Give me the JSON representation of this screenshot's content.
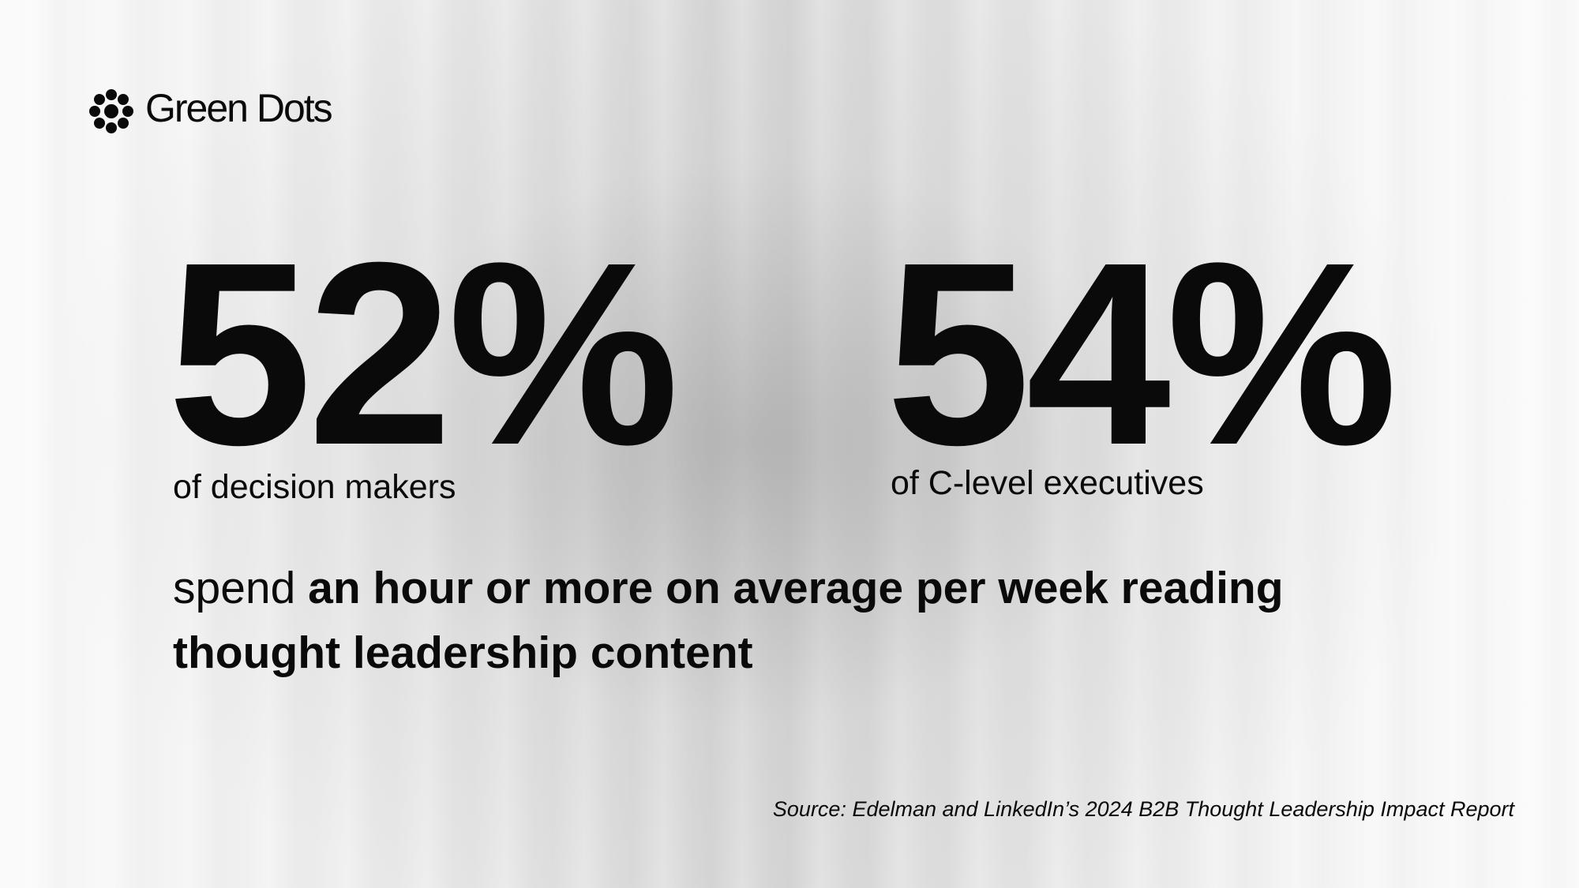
{
  "logo": {
    "text": "Green Dots"
  },
  "stats": [
    {
      "value": "52%",
      "label": "of decision makers"
    },
    {
      "value": "54%",
      "label": "of C-level executives"
    }
  ],
  "statement": {
    "lead": "spend",
    "emphasis": "an hour or more on average per week reading thought leadership content"
  },
  "source": "Source: Edelman and LinkedIn’s 2024 B2B Thought Leadership Impact Report"
}
